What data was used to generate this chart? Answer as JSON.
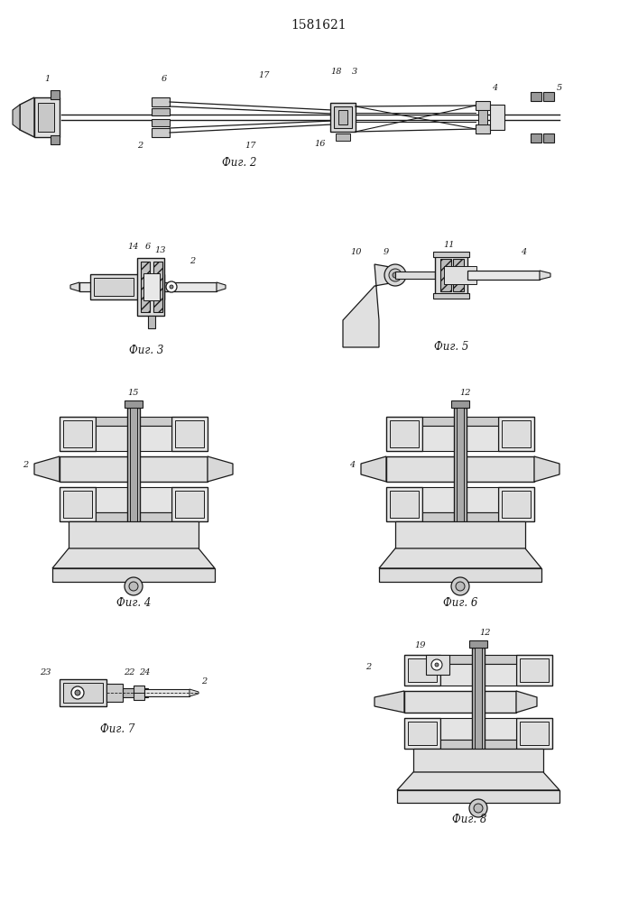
{
  "title": "1581621",
  "bg_color": "#ffffff",
  "line_color": "#1a1a1a",
  "fig2_label": "Фиг. 2",
  "fig3_label": "Фиг. 3",
  "fig4_label": "Фиг. 4",
  "fig5_label": "Фиг. 5",
  "fig6_label": "Фиг. 6",
  "fig7_label": "Фиг. 7",
  "fig8_label": "Фиг. 8"
}
